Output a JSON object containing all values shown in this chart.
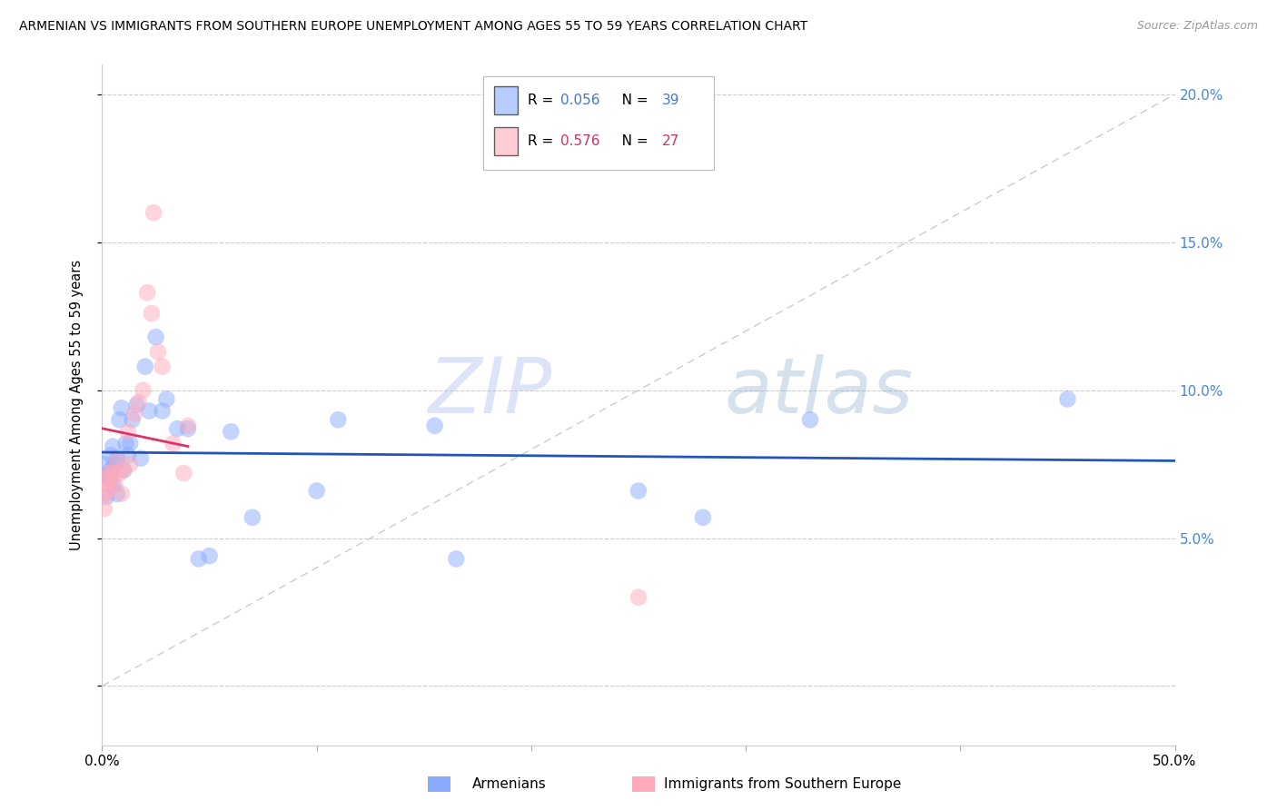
{
  "title": "ARMENIAN VS IMMIGRANTS FROM SOUTHERN EUROPE UNEMPLOYMENT AMONG AGES 55 TO 59 YEARS CORRELATION CHART",
  "source": "Source: ZipAtlas.com",
  "ylabel": "Unemployment Among Ages 55 to 59 years",
  "xlim": [
    0.0,
    0.5
  ],
  "ylim": [
    -0.02,
    0.21
  ],
  "xtick_vals": [
    0.0,
    0.1,
    0.2,
    0.3,
    0.4,
    0.5
  ],
  "xtick_labels": [
    "0.0%",
    "",
    "",
    "",
    "",
    "50.0%"
  ],
  "ytick_vals": [
    0.0,
    0.05,
    0.1,
    0.15,
    0.2
  ],
  "ytick_labels_right": [
    "",
    "5.0%",
    "10.0%",
    "15.0%",
    "20.0%"
  ],
  "armenian_color": "#88aaff",
  "southern_europe_color": "#ffaabb",
  "armenian_line_color": "#2255bb",
  "southern_europe_line_color": "#dd3366",
  "grid_color": "#cccccc",
  "R_armenian": "0.056",
  "N_armenian": "39",
  "R_southern": "0.576",
  "N_southern": "27",
  "watermark_zip": "ZIP",
  "watermark_atlas": "atlas",
  "armenian_x": [
    0.001,
    0.001,
    0.002,
    0.003,
    0.004,
    0.004,
    0.005,
    0.005,
    0.006,
    0.007,
    0.007,
    0.008,
    0.009,
    0.01,
    0.011,
    0.012,
    0.013,
    0.014,
    0.016,
    0.018,
    0.02,
    0.022,
    0.025,
    0.028,
    0.03,
    0.035,
    0.04,
    0.045,
    0.05,
    0.06,
    0.07,
    0.1,
    0.11,
    0.155,
    0.165,
    0.28,
    0.33,
    0.45,
    0.25
  ],
  "armenian_y": [
    0.075,
    0.071,
    0.064,
    0.07,
    0.073,
    0.078,
    0.081,
    0.068,
    0.075,
    0.077,
    0.065,
    0.09,
    0.094,
    0.073,
    0.082,
    0.078,
    0.082,
    0.09,
    0.095,
    0.077,
    0.108,
    0.093,
    0.118,
    0.093,
    0.097,
    0.087,
    0.087,
    0.043,
    0.044,
    0.086,
    0.057,
    0.066,
    0.09,
    0.088,
    0.043,
    0.057,
    0.09,
    0.097,
    0.066
  ],
  "southern_x": [
    0.001,
    0.001,
    0.002,
    0.002,
    0.003,
    0.003,
    0.004,
    0.005,
    0.006,
    0.007,
    0.008,
    0.009,
    0.01,
    0.012,
    0.013,
    0.015,
    0.017,
    0.019,
    0.021,
    0.023,
    0.024,
    0.026,
    0.028,
    0.033,
    0.038,
    0.04,
    0.25
  ],
  "southern_y": [
    0.065,
    0.06,
    0.065,
    0.07,
    0.068,
    0.072,
    0.07,
    0.072,
    0.068,
    0.076,
    0.072,
    0.065,
    0.073,
    0.086,
    0.075,
    0.092,
    0.096,
    0.1,
    0.133,
    0.126,
    0.16,
    0.113,
    0.108,
    0.082,
    0.072,
    0.088,
    0.03
  ]
}
